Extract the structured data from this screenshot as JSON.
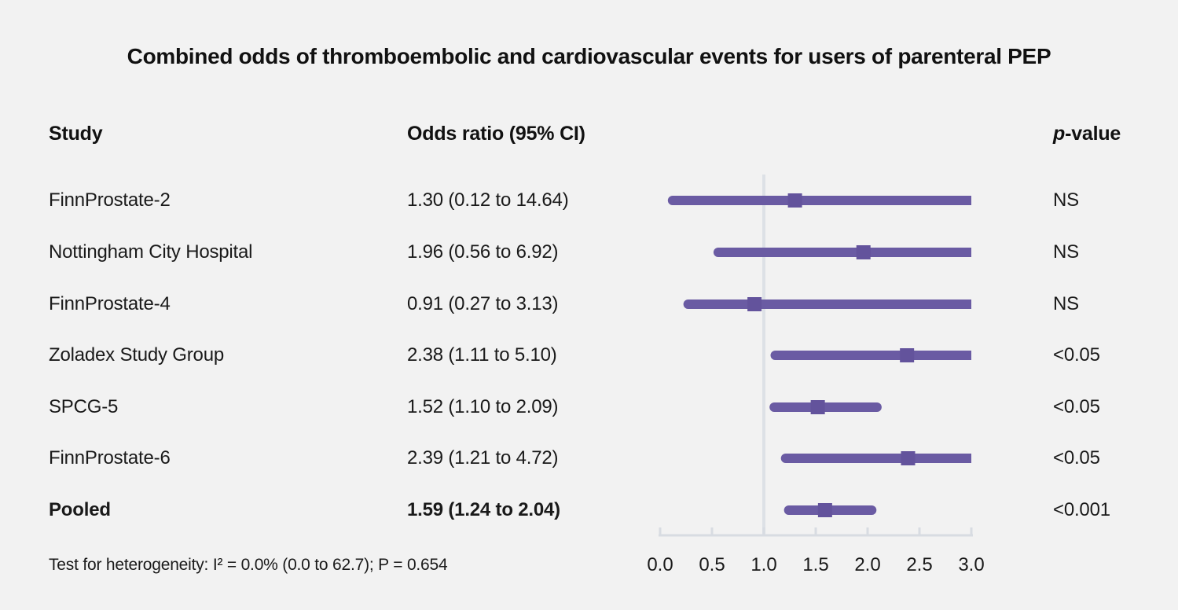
{
  "columns": {
    "study": "Study",
    "odds_ratio": "Odds ratio (95% CI)",
    "p_italic": "p",
    "p_rest": "-value"
  },
  "chart_data": {
    "type": "scatter",
    "variant": "forest-plot",
    "title": "Combined odds of thromboembolic and cardiovascular events for users of parenteral PEP",
    "xlabel": "",
    "ylabel": "",
    "x_axis": {
      "range": [
        0.0,
        3.0
      ],
      "ticks": [
        "0.0",
        "0.5",
        "1.0",
        "1.5",
        "2.0",
        "2.5",
        "3.0"
      ],
      "tick_values": [
        0.0,
        0.5,
        1.0,
        1.5,
        2.0,
        2.5,
        3.0
      ],
      "reference_line": 1.0,
      "grid": false
    },
    "studies": [
      {
        "name": "FinnProstate-2",
        "or": 1.3,
        "ci_low": 0.12,
        "ci_high": 14.64,
        "or_ci_label": "1.30 (0.12 to 14.64)",
        "p": "NS",
        "bold": false
      },
      {
        "name": "Nottingham City Hospital",
        "or": 1.96,
        "ci_low": 0.56,
        "ci_high": 6.92,
        "or_ci_label": "1.96 (0.56 to 6.92)",
        "p": "NS",
        "bold": false
      },
      {
        "name": "FinnProstate-4",
        "or": 0.91,
        "ci_low": 0.27,
        "ci_high": 3.13,
        "or_ci_label": "0.91 (0.27 to 3.13)",
        "p": "NS",
        "bold": false
      },
      {
        "name": "Zoladex Study Group",
        "or": 2.38,
        "ci_low": 1.11,
        "ci_high": 5.1,
        "or_ci_label": "2.38 (1.11 to 5.10)",
        "p": "<0.05",
        "bold": false
      },
      {
        "name": "SPCG-5",
        "or": 1.52,
        "ci_low": 1.1,
        "ci_high": 2.09,
        "or_ci_label": "1.52 (1.10 to 2.09)",
        "p": "<0.05",
        "bold": false
      },
      {
        "name": "FinnProstate-6",
        "or": 2.39,
        "ci_low": 1.21,
        "ci_high": 4.72,
        "or_ci_label": "2.39 (1.21 to 4.72)",
        "p": "<0.05",
        "bold": false
      },
      {
        "name": "Pooled",
        "or": 1.59,
        "ci_low": 1.24,
        "ci_high": 2.04,
        "or_ci_label": "1.59 (1.24 to 2.04)",
        "p": "<0.001",
        "bold": true
      }
    ],
    "footnote": "Test for heterogeneity: I² = 0.0% (0.0 to 62.7); P = 0.654",
    "colors": {
      "ci_line": "#6a5ba3",
      "marker": "#63539c",
      "reference_line": "#dde1e6",
      "axis": "#d8dce2",
      "text": "#1a1a1a",
      "background": "#f2f2f2"
    }
  }
}
